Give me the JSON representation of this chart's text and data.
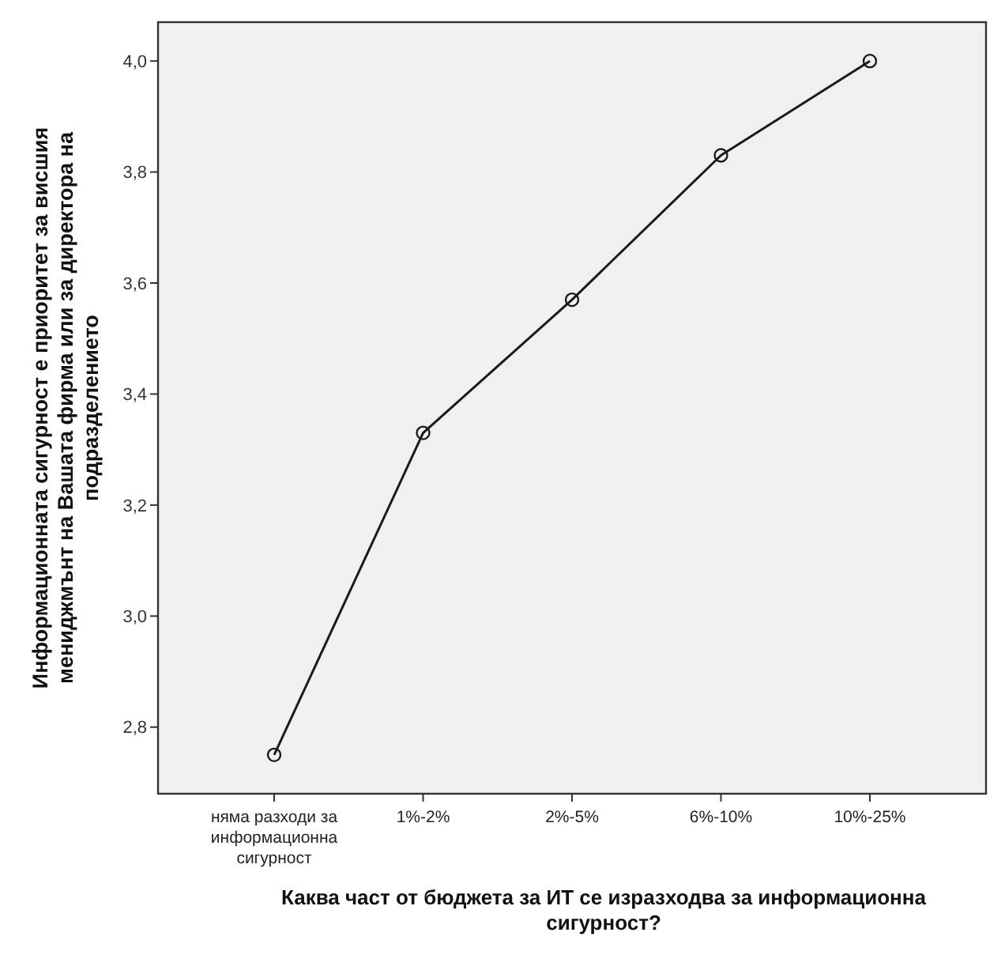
{
  "chart_data": {
    "type": "line",
    "xlabel": "Каква част от бюджета за ИТ се изразходва за информационна сигурност?",
    "ylabel": "Информационната сигурност е приоритет за висшия мениджмънт на Вашата фирма или за директора на подразделението",
    "categories": [
      "няма разходи за информационна сигурност",
      "1%-2%",
      "2%-5%",
      "6%-10%",
      "10%-25%"
    ],
    "series": [
      {
        "color": "#1a1a1a",
        "values": [
          2.75,
          3.33,
          3.57,
          3.83,
          4.0
        ]
      }
    ],
    "ylim": [
      2.68,
      4.07
    ],
    "yticks": [
      {
        "value": 2.8,
        "label": "2,8"
      },
      {
        "value": 3.0,
        "label": "3,0"
      },
      {
        "value": 3.2,
        "label": "3,2"
      },
      {
        "value": 3.4,
        "label": "3,4"
      },
      {
        "value": 3.6,
        "label": "3,6"
      },
      {
        "value": 3.8,
        "label": "3,8"
      },
      {
        "value": 4.0,
        "label": "4,0"
      }
    ],
    "grid": false,
    "marker": "circle",
    "line_style": "solid"
  }
}
